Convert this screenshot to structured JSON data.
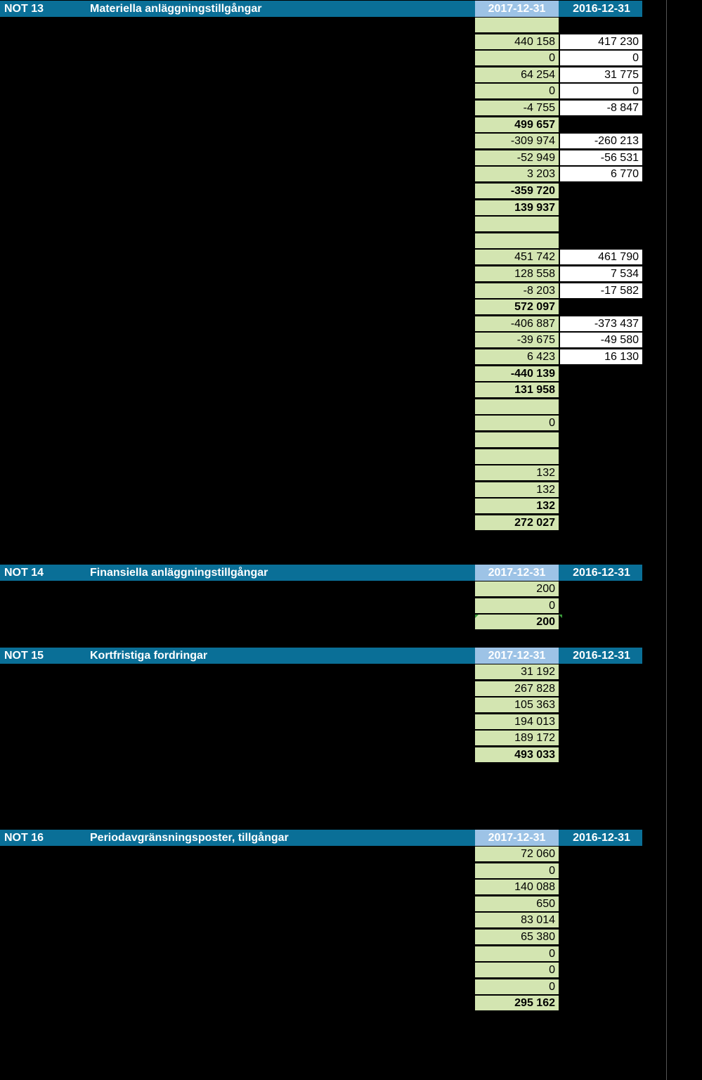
{
  "notes": [
    {
      "not": "NOT 13",
      "title": "Materiella anläggningstillgångar",
      "col1": "2017-12-31",
      "col2": "2016-12-31",
      "rows": [
        {
          "v1": "",
          "v2": null,
          "bold": false
        },
        {
          "v1": "440 158",
          "v2": "417 230",
          "bold": false
        },
        {
          "v1": "0",
          "v2": "0",
          "bold": false
        },
        {
          "v1": "64 254",
          "v2": "31 775",
          "bold": false
        },
        {
          "v1": "0",
          "v2": "0",
          "bold": false
        },
        {
          "v1": "-4 755",
          "v2": "-8 847",
          "bold": false
        },
        {
          "v1": "499 657",
          "v2": null,
          "bold": true
        },
        {
          "v1": "-309 974",
          "v2": "-260 213",
          "bold": false
        },
        {
          "v1": "-52 949",
          "v2": "-56 531",
          "bold": false
        },
        {
          "v1": "3 203",
          "v2": "6 770",
          "bold": false
        },
        {
          "v1": "-359 720",
          "v2": null,
          "bold": true
        },
        {
          "v1": "139 937",
          "v2": null,
          "bold": true
        },
        {
          "v1": "",
          "v2": null,
          "bold": false
        },
        {
          "v1": "",
          "v2": null,
          "bold": false
        },
        {
          "v1": "451 742",
          "v2": "461 790",
          "bold": false
        },
        {
          "v1": "128 558",
          "v2": "7 534",
          "bold": false
        },
        {
          "v1": "-8 203",
          "v2": "-17 582",
          "bold": false
        },
        {
          "v1": "572 097",
          "v2": null,
          "bold": true
        },
        {
          "v1": "-406 887",
          "v2": "-373 437",
          "bold": false
        },
        {
          "v1": "-39 675",
          "v2": "-49 580",
          "bold": false
        },
        {
          "v1": "6 423",
          "v2": "16 130",
          "bold": false
        },
        {
          "v1": "-440 139",
          "v2": null,
          "bold": true
        },
        {
          "v1": "131 958",
          "v2": null,
          "bold": true
        },
        {
          "v1": "",
          "v2": null,
          "bold": false
        },
        {
          "v1": "0",
          "v2": null,
          "bold": false
        },
        {
          "v1": "",
          "v2": null,
          "bold": false
        },
        {
          "v1": "",
          "v2": null,
          "bold": false
        },
        {
          "v1": "132",
          "v2": null,
          "bold": false
        },
        {
          "v1": "132",
          "v2": null,
          "bold": false
        },
        {
          "v1": "132",
          "v2": null,
          "bold": true
        },
        {
          "v1": "272 027",
          "v2": null,
          "bold": true
        }
      ]
    },
    {
      "not": "NOT 14",
      "title": "Finansiella anläggningstillgångar",
      "col1": "2017-12-31",
      "col2": "2016-12-31",
      "rows": [
        {
          "v1": "200",
          "v2": null,
          "bold": false
        },
        {
          "v1": "0",
          "v2": null,
          "bold": false
        },
        {
          "v1": "200",
          "v2": null,
          "bold": true
        }
      ]
    },
    {
      "not": "NOT 15",
      "title": "Kortfristiga fordringar",
      "col1": "2017-12-31",
      "col2": "2016-12-31",
      "rows": [
        {
          "v1": "31 192",
          "v2": null,
          "bold": false
        },
        {
          "v1": "267 828",
          "v2": null,
          "bold": false
        },
        {
          "v1": "105 363",
          "v2": null,
          "bold": false
        },
        {
          "v1": "194 013",
          "v2": null,
          "bold": false
        },
        {
          "v1": "189 172",
          "v2": null,
          "bold": false
        },
        {
          "v1": "493 033",
          "v2": null,
          "bold": true
        }
      ]
    },
    {
      "not": "NOT 16",
      "title": "Periodavgränsningsposter, tillgångar",
      "col1": "2017-12-31",
      "col2": "2016-12-31",
      "rows": [
        {
          "v1": "72 060",
          "v2": null,
          "bold": false
        },
        {
          "v1": "0",
          "v2": null,
          "bold": false
        },
        {
          "v1": "140 088",
          "v2": null,
          "bold": false
        },
        {
          "v1": "650",
          "v2": null,
          "bold": false
        },
        {
          "v1": "83 014",
          "v2": null,
          "bold": false
        },
        {
          "v1": "65 380",
          "v2": null,
          "bold": false
        },
        {
          "v1": "0",
          "v2": null,
          "bold": false
        },
        {
          "v1": "0",
          "v2": null,
          "bold": false
        },
        {
          "v1": "0",
          "v2": null,
          "bold": false
        },
        {
          "v1": "295 162",
          "v2": null,
          "bold": true
        }
      ]
    }
  ]
}
